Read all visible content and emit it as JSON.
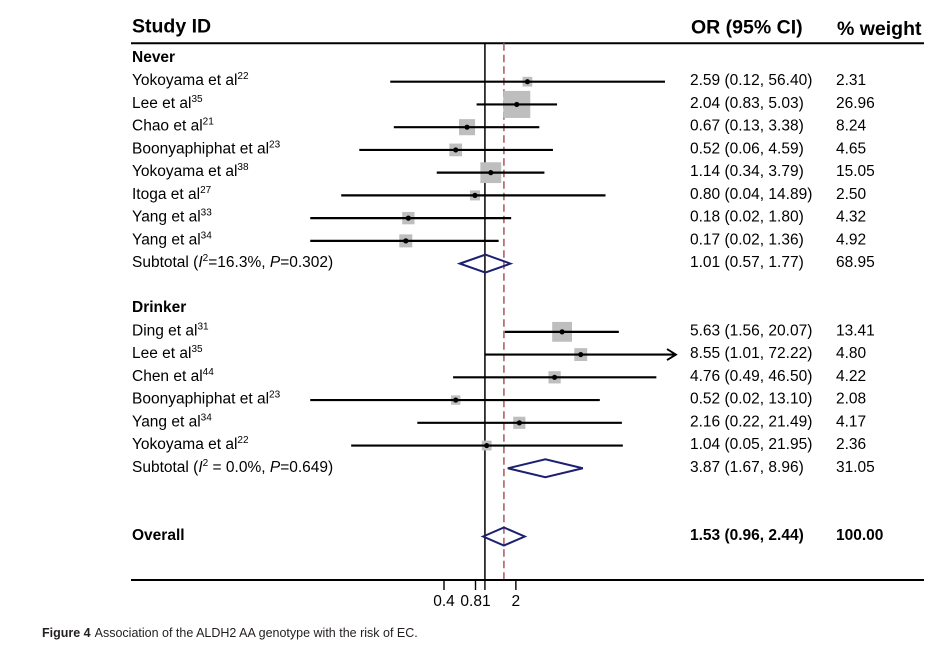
{
  "figure": {
    "caption_label": "Figure 4",
    "caption_text": "Association of the ALDH2 AA genotype with the risk of EC."
  },
  "colors": {
    "box": "#bebebe",
    "point": "#000000",
    "ci_line": "#000000",
    "diamond": "#1c2070",
    "null_line": "#000000",
    "overall_line": "#b0606a"
  },
  "chart_data": {
    "type": "scatter",
    "variant": "forest",
    "title": "",
    "xlabel": "",
    "ylabel": "",
    "x_scale": "log",
    "xlim": [
      0.0139,
      72.2
    ],
    "null_value": 1,
    "overall_estimate_line": 1.53,
    "grid": false,
    "x_ticks": [
      {
        "value": 0.4,
        "label": "0.4"
      },
      {
        "value": 0.81,
        "label": "0.81"
      },
      {
        "value": 1,
        "label": ""
      },
      {
        "value": 2,
        "label": "2"
      }
    ],
    "columns": {
      "study": "Study ID",
      "effect": "OR (95% CI)",
      "weight": "% weight"
    },
    "groups": [
      {
        "label": "Never",
        "studies": [
          {
            "name": "Yokoyama et al",
            "ref": "22",
            "or": 2.59,
            "lo": 0.12,
            "hi": 56.4,
            "or_ci": "2.59 (0.12, 56.40)",
            "weight": "2.31"
          },
          {
            "name": "Lee et al",
            "ref": "35",
            "or": 2.04,
            "lo": 0.83,
            "hi": 5.03,
            "or_ci": "2.04 (0.83, 5.03)",
            "weight": "26.96"
          },
          {
            "name": "Chao et al",
            "ref": "21",
            "or": 0.67,
            "lo": 0.13,
            "hi": 3.38,
            "or_ci": "0.67 (0.13, 3.38)",
            "weight": "8.24"
          },
          {
            "name": "Boonyaphiphat et al",
            "ref": "23",
            "or": 0.52,
            "lo": 0.06,
            "hi": 4.59,
            "or_ci": "0.52 (0.06, 4.59)",
            "weight": "4.65"
          },
          {
            "name": "Yokoyama et al",
            "ref": "38",
            "or": 1.14,
            "lo": 0.34,
            "hi": 3.79,
            "or_ci": "1.14 (0.34, 3.79)",
            "weight": "15.05"
          },
          {
            "name": "Itoga et al",
            "ref": "27",
            "or": 0.8,
            "lo": 0.04,
            "hi": 14.89,
            "or_ci": "0.80 (0.04, 14.89)",
            "weight": "2.50"
          },
          {
            "name": "Yang et al",
            "ref": "33",
            "or": 0.18,
            "lo": 0.02,
            "hi": 1.8,
            "or_ci": "0.18 (0.02, 1.80)",
            "weight": "4.32"
          },
          {
            "name": "Yang et al",
            "ref": "34",
            "or": 0.17,
            "lo": 0.02,
            "hi": 1.36,
            "or_ci": "0.17 (0.02, 1.36)",
            "weight": "4.92"
          }
        ],
        "subtotal": {
          "prefix": "Subtotal (",
          "i2_symbol": "I",
          "i2_sup": "2",
          "i2_value": "=16.3%, ",
          "p_symbol": "P",
          "p_value": "=0.302)",
          "or": 1.01,
          "lo": 0.57,
          "hi": 1.77,
          "or_ci": "1.01 (0.57, 1.77)",
          "weight": "68.95"
        }
      },
      {
        "label": "Drinker",
        "studies": [
          {
            "name": "Ding et al",
            "ref": "31",
            "or": 5.63,
            "lo": 1.56,
            "hi": 20.07,
            "or_ci": "5.63 (1.56, 20.07)",
            "weight": "13.41"
          },
          {
            "name": "Lee et al",
            "ref": "35",
            "or": 8.55,
            "lo": 1.01,
            "hi": 72.22,
            "or_ci": "8.55 (1.01, 72.22)",
            "weight": "4.80"
          },
          {
            "name": "Chen et al",
            "ref": "44",
            "or": 4.76,
            "lo": 0.49,
            "hi": 46.5,
            "or_ci": "4.76 (0.49, 46.50)",
            "weight": "4.22"
          },
          {
            "name": "Boonyaphiphat et al",
            "ref": "23",
            "or": 0.52,
            "lo": 0.02,
            "hi": 13.1,
            "or_ci": "0.52 (0.02, 13.10)",
            "weight": "2.08"
          },
          {
            "name": "Yang et al",
            "ref": "34",
            "or": 2.16,
            "lo": 0.22,
            "hi": 21.49,
            "or_ci": "2.16 (0.22, 21.49)",
            "weight": "4.17"
          },
          {
            "name": "Yokoyama et al",
            "ref": "22",
            "or": 1.04,
            "lo": 0.05,
            "hi": 21.95,
            "or_ci": "1.04 (0.05, 21.95)",
            "weight": "2.36"
          }
        ],
        "subtotal": {
          "prefix": "Subtotal (",
          "i2_symbol": "I",
          "i2_sup": "2",
          "i2_value": " = 0.0%, ",
          "p_symbol": "P",
          "p_value": "=0.649)",
          "or": 3.87,
          "lo": 1.67,
          "hi": 8.96,
          "or_ci": "3.87 (1.67, 8.96)",
          "weight": "31.05"
        }
      }
    ],
    "overall": {
      "label": "Overall",
      "or": 1.53,
      "lo": 0.96,
      "hi": 2.44,
      "or_ci": "1.53 (0.96, 2.44)",
      "weight": "100.00"
    }
  }
}
